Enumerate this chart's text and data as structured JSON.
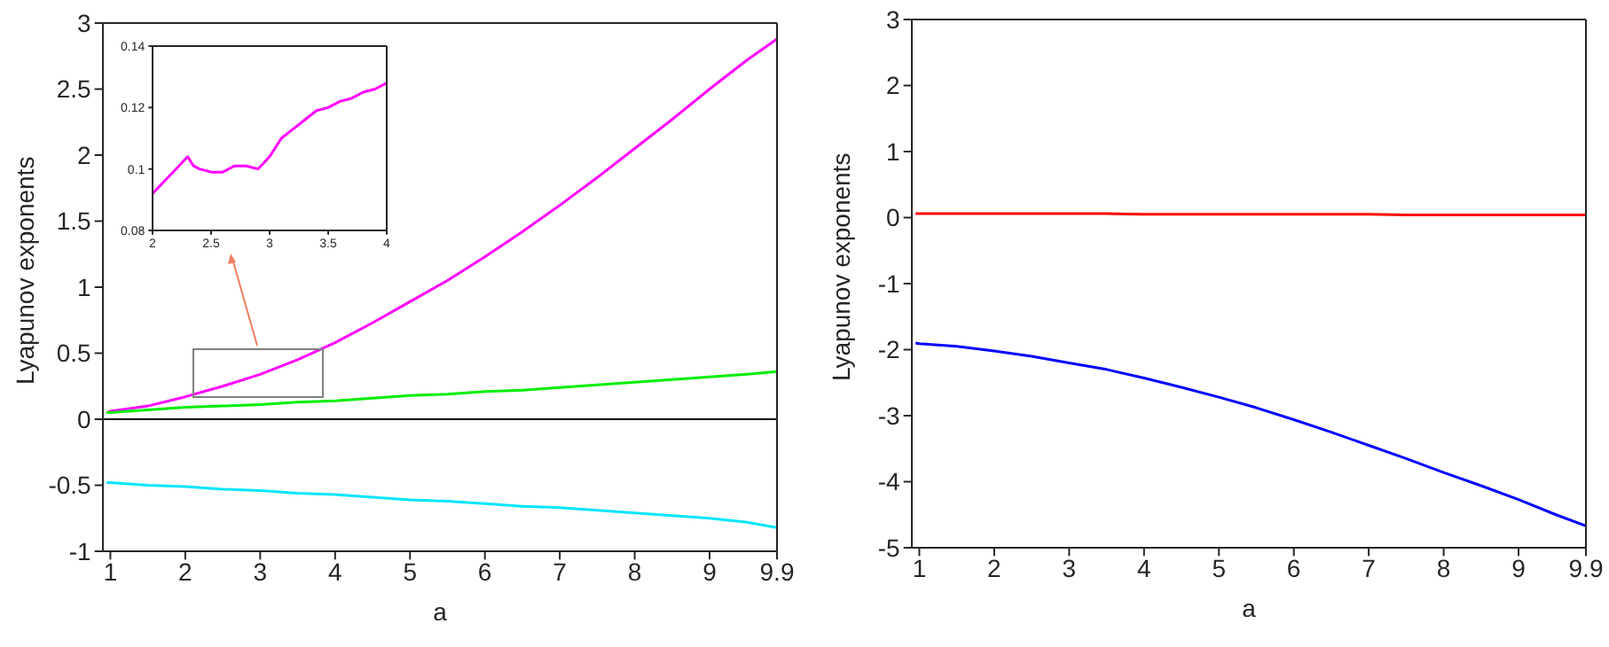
{
  "chart_data": [
    {
      "type": "line",
      "xlabel": "a",
      "ylabel": "Lyapunov exponents",
      "x": [
        0.95,
        1,
        1.5,
        2,
        2.5,
        3,
        3.5,
        4,
        4.5,
        5,
        5.5,
        6,
        6.5,
        7,
        7.5,
        8,
        8.5,
        9,
        9.5,
        9.9
      ],
      "series": [
        {
          "color": "#ff00ff",
          "values": [
            0.05,
            0.06,
            0.1,
            0.17,
            0.25,
            0.34,
            0.45,
            0.58,
            0.73,
            0.89,
            1.05,
            1.23,
            1.42,
            1.62,
            1.83,
            2.05,
            2.27,
            2.5,
            2.72,
            2.88
          ]
        },
        {
          "color": "#00ee00",
          "values": [
            0.05,
            0.05,
            0.07,
            0.09,
            0.1,
            0.11,
            0.13,
            0.14,
            0.16,
            0.18,
            0.19,
            0.21,
            0.22,
            0.24,
            0.26,
            0.28,
            0.3,
            0.32,
            0.34,
            0.36
          ]
        },
        {
          "color": "#00e5ff",
          "values": [
            -0.48,
            -0.48,
            -0.5,
            -0.51,
            -0.53,
            -0.54,
            -0.56,
            -0.57,
            -0.59,
            -0.61,
            -0.62,
            -0.64,
            -0.66,
            -0.67,
            -0.69,
            -0.71,
            -0.73,
            -0.75,
            -0.78,
            -0.82
          ]
        }
      ],
      "xlim": [
        0.9,
        9.9
      ],
      "xticks": [
        1,
        2,
        3,
        4,
        5,
        6,
        7,
        8,
        9,
        9.9
      ],
      "ylim": [
        -1,
        3
      ],
      "yticks": [
        -1,
        -0.5,
        0,
        0.5,
        1,
        1.5,
        2,
        2.5,
        3
      ],
      "ref_lines": [
        {
          "axis": "y",
          "value": 0,
          "color": "#000000"
        }
      ],
      "marker": "none",
      "line_style": "solid",
      "grid": false,
      "legend": false
    },
    {
      "type": "line",
      "x": [
        2,
        2.1,
        2.2,
        2.3,
        2.35,
        2.4,
        2.5,
        2.6,
        2.7,
        2.8,
        2.9,
        3,
        3.1,
        3.2,
        3.3,
        3.4,
        3.5,
        3.6,
        3.7,
        3.8,
        3.9,
        4
      ],
      "series": [
        {
          "color": "#ff00ff",
          "values": [
            0.092,
            0.096,
            0.1,
            0.104,
            0.101,
            0.1,
            0.099,
            0.099,
            0.101,
            0.101,
            0.1,
            0.104,
            0.11,
            0.113,
            0.116,
            0.119,
            0.12,
            0.122,
            0.123,
            0.125,
            0.126,
            0.128
          ]
        }
      ],
      "xlim": [
        2,
        4
      ],
      "xticks": [
        2,
        2.5,
        3,
        3.5,
        4
      ],
      "ylim": [
        0.08,
        0.14
      ],
      "yticks": [
        0.08,
        0.1,
        0.12,
        0.14
      ],
      "marker": "none",
      "line_style": "solid",
      "grid": false,
      "legend": false
    },
    {
      "type": "line",
      "xlabel": "a",
      "ylabel": "Lyapunov exponents",
      "x": [
        0.95,
        1,
        1.5,
        2,
        2.5,
        3,
        3.5,
        4,
        4.5,
        5,
        5.5,
        6,
        6.5,
        7,
        7.5,
        8,
        8.5,
        9,
        9.5,
        9.9
      ],
      "series": [
        {
          "color": "#ff0000",
          "values": [
            0.06,
            0.06,
            0.06,
            0.06,
            0.06,
            0.06,
            0.06,
            0.05,
            0.05,
            0.05,
            0.05,
            0.05,
            0.05,
            0.05,
            0.04,
            0.04,
            0.04,
            0.04,
            0.04,
            0.04
          ]
        },
        {
          "color": "#0000ff",
          "values": [
            -1.9,
            -1.91,
            -1.95,
            -2.02,
            -2.1,
            -2.2,
            -2.3,
            -2.43,
            -2.57,
            -2.72,
            -2.88,
            -3.06,
            -3.25,
            -3.45,
            -3.65,
            -3.86,
            -4.06,
            -4.27,
            -4.5,
            -4.67
          ]
        }
      ],
      "xlim": [
        0.9,
        9.9
      ],
      "xticks": [
        1,
        2,
        3,
        4,
        5,
        6,
        7,
        8,
        9,
        9.9
      ],
      "ylim": [
        -5,
        3
      ],
      "yticks": [
        -5,
        -4,
        -3,
        -2,
        -1,
        0,
        1,
        2,
        3
      ],
      "marker": "none",
      "line_style": "solid",
      "grid": false,
      "legend": false
    }
  ]
}
